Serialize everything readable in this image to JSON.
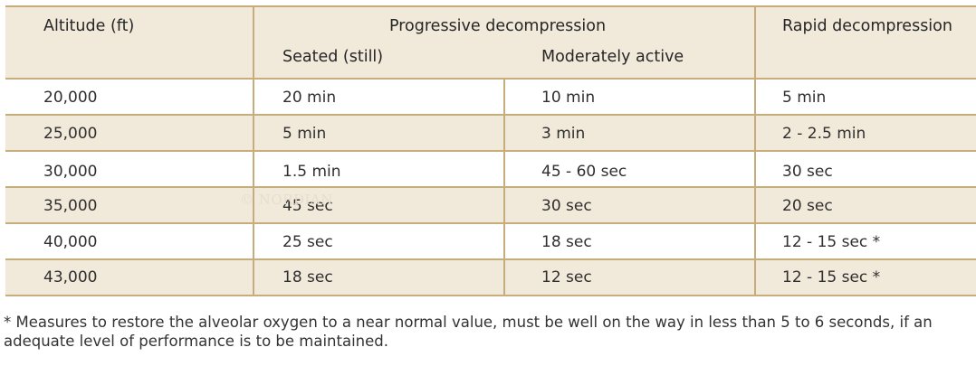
{
  "table": {
    "headers": {
      "altitude": "Altitude (ft)",
      "progressive": "Progressive decompression",
      "seated": "Seated (still)",
      "moderate": "Moderately active",
      "rapid": "Rapid decompression"
    },
    "rows": [
      [
        "20,000",
        "20 min",
        "10 min",
        "5 min"
      ],
      [
        "25,000",
        "5 min",
        "3 min",
        "2 - 2.5 min"
      ],
      [
        "30,000",
        "1.5 min",
        "45 - 60 sec",
        "30 sec"
      ],
      [
        "35,000",
        "45 sec",
        "30 sec",
        "20 sec"
      ],
      [
        "40,000",
        "25 sec",
        "18 sec",
        "12 - 15 sec *"
      ],
      [
        "43,000",
        "18 sec",
        "12 sec",
        "12 - 15 sec *"
      ]
    ]
  },
  "watermark": "© NORDIAN",
  "footnote": "* Measures to restore the alveolar oxygen to a near normal value, must be well on the way in less than 5 to 6 seconds, if an adequate level of performance is to be maintained."
}
